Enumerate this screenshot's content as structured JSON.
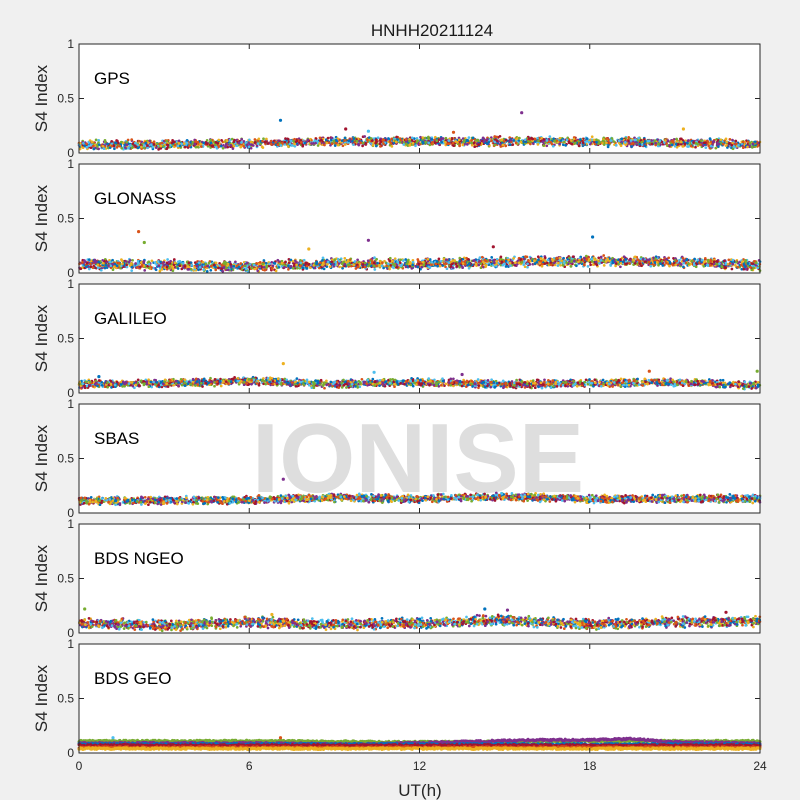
{
  "figure": {
    "title": "HNHH20211124",
    "xlabel": "UT(h)",
    "ylabel": "S4 Index",
    "watermark": "IONISE",
    "watermark_panel": 3,
    "background": "#f0f0f0",
    "axes_background": "#ffffff",
    "series_colors": [
      "#0072BD",
      "#D95319",
      "#EDB120",
      "#7E2F8E",
      "#77AC30",
      "#4DBEEE",
      "#A2142F"
    ]
  },
  "chart_data": [
    {
      "type": "scatter",
      "panel_label": "GPS",
      "xlim": [
        0,
        24
      ],
      "ylim": [
        0,
        1
      ],
      "xticks": [
        "0",
        "6",
        "12",
        "18",
        "24"
      ],
      "yticks": [
        "0",
        "0.5",
        "1"
      ],
      "level": [
        [
          0,
          0.07
        ],
        [
          3,
          0.08
        ],
        [
          7,
          0.09
        ],
        [
          10,
          0.11
        ],
        [
          13,
          0.1
        ],
        [
          16,
          0.11
        ],
        [
          20,
          0.1
        ],
        [
          24,
          0.08
        ]
      ],
      "spread": 0.035,
      "outliers": [
        [
          7.1,
          0.3
        ],
        [
          15.6,
          0.37
        ],
        [
          9.4,
          0.22
        ],
        [
          21.3,
          0.22
        ],
        [
          10.2,
          0.2
        ],
        [
          13.2,
          0.19
        ]
      ]
    },
    {
      "type": "scatter",
      "panel_label": "GLONASS",
      "xlim": [
        0,
        24
      ],
      "ylim": [
        0,
        1
      ],
      "xticks": [
        "0",
        "6",
        "12",
        "18",
        "24"
      ],
      "yticks": [
        "0",
        "0.5",
        "1"
      ],
      "level": [
        [
          0,
          0.08
        ],
        [
          3,
          0.07
        ],
        [
          6,
          0.06
        ],
        [
          9,
          0.09
        ],
        [
          12,
          0.08
        ],
        [
          15,
          0.1
        ],
        [
          18,
          0.11
        ],
        [
          21,
          0.1
        ],
        [
          24,
          0.07
        ]
      ],
      "spread": 0.04,
      "outliers": [
        [
          2.1,
          0.38
        ],
        [
          2.3,
          0.28
        ],
        [
          18.1,
          0.33
        ],
        [
          10.2,
          0.3
        ],
        [
          14.6,
          0.24
        ],
        [
          8.1,
          0.22
        ]
      ]
    },
    {
      "type": "scatter",
      "panel_label": "GALILEO",
      "xlim": [
        0,
        24
      ],
      "ylim": [
        0,
        1
      ],
      "xticks": [
        "0",
        "6",
        "12",
        "18",
        "24"
      ],
      "yticks": [
        "0",
        "0.5",
        "1"
      ],
      "level": [
        [
          0,
          0.08
        ],
        [
          3,
          0.09
        ],
        [
          6,
          0.11
        ],
        [
          9,
          0.08
        ],
        [
          12,
          0.1
        ],
        [
          15,
          0.08
        ],
        [
          18,
          0.09
        ],
        [
          21,
          0.1
        ],
        [
          24,
          0.07
        ]
      ],
      "spread": 0.03,
      "outliers": [
        [
          7.2,
          0.27
        ],
        [
          10.4,
          0.19
        ],
        [
          20.1,
          0.2
        ],
        [
          23.9,
          0.2
        ],
        [
          0.7,
          0.15
        ],
        [
          13.5,
          0.17
        ]
      ]
    },
    {
      "type": "scatter",
      "panel_label": "SBAS",
      "xlim": [
        0,
        24
      ],
      "ylim": [
        0,
        1
      ],
      "xticks": [
        "0",
        "6",
        "12",
        "18",
        "24"
      ],
      "yticks": [
        "0",
        "0.5",
        "1"
      ],
      "level": [
        [
          0,
          0.11
        ],
        [
          6,
          0.12
        ],
        [
          9,
          0.14
        ],
        [
          12,
          0.13
        ],
        [
          15,
          0.15
        ],
        [
          18,
          0.13
        ],
        [
          24,
          0.13
        ]
      ],
      "spread": 0.03,
      "outliers": [
        [
          7.2,
          0.31
        ]
      ]
    },
    {
      "type": "scatter",
      "panel_label": "BDS NGEO",
      "xlim": [
        0,
        24
      ],
      "ylim": [
        0,
        1
      ],
      "xticks": [
        "0",
        "6",
        "12",
        "18",
        "24"
      ],
      "yticks": [
        "0",
        "0.5",
        "1"
      ],
      "level": [
        [
          0,
          0.09
        ],
        [
          3,
          0.07
        ],
        [
          6,
          0.1
        ],
        [
          9,
          0.08
        ],
        [
          12,
          0.09
        ],
        [
          15,
          0.12
        ],
        [
          18,
          0.08
        ],
        [
          21,
          0.1
        ],
        [
          24,
          0.11
        ]
      ],
      "spread": 0.04,
      "outliers": [
        [
          0.2,
          0.22
        ],
        [
          14.3,
          0.22
        ],
        [
          15.1,
          0.21
        ],
        [
          22.8,
          0.19
        ],
        [
          6.8,
          0.17
        ]
      ]
    },
    {
      "type": "scatter",
      "panel_label": "BDS GEO",
      "xlim": [
        0,
        24
      ],
      "ylim": [
        0,
        1
      ],
      "xticks": [
        "0",
        "6",
        "12",
        "18",
        "24"
      ],
      "yticks": [
        "0",
        "0.5",
        "1"
      ],
      "lines": [
        {
          "color": "#77AC30",
          "pts": [
            [
              0,
              0.11
            ],
            [
              6,
              0.11
            ],
            [
              12,
              0.1
            ],
            [
              18,
              0.11
            ],
            [
              24,
              0.11
            ]
          ]
        },
        {
          "color": "#7E2F8E",
          "pts": [
            [
              0,
              0.09
            ],
            [
              6,
              0.09
            ],
            [
              10,
              0.08
            ],
            [
              13,
              0.1
            ],
            [
              16,
              0.12
            ],
            [
              18,
              0.12
            ],
            [
              19.5,
              0.13
            ],
            [
              21,
              0.1
            ],
            [
              24,
              0.09
            ]
          ]
        },
        {
          "color": "#0072BD",
          "pts": [
            [
              0,
              0.08
            ],
            [
              12,
              0.08
            ],
            [
              24,
              0.08
            ]
          ]
        },
        {
          "color": "#A2142F",
          "pts": [
            [
              0,
              0.07
            ],
            [
              12,
              0.07
            ],
            [
              24,
              0.07
            ]
          ]
        },
        {
          "color": "#D95319",
          "pts": [
            [
              0,
              0.05
            ],
            [
              12,
              0.05
            ],
            [
              24,
              0.05
            ]
          ]
        },
        {
          "color": "#EDB120",
          "pts": [
            [
              0,
              0.04
            ],
            [
              12,
              0.04
            ],
            [
              24,
              0.04
            ]
          ]
        }
      ],
      "spread": 0.008,
      "outliers": [
        [
          1.2,
          0.14
        ],
        [
          7.1,
          0.14
        ]
      ]
    }
  ]
}
